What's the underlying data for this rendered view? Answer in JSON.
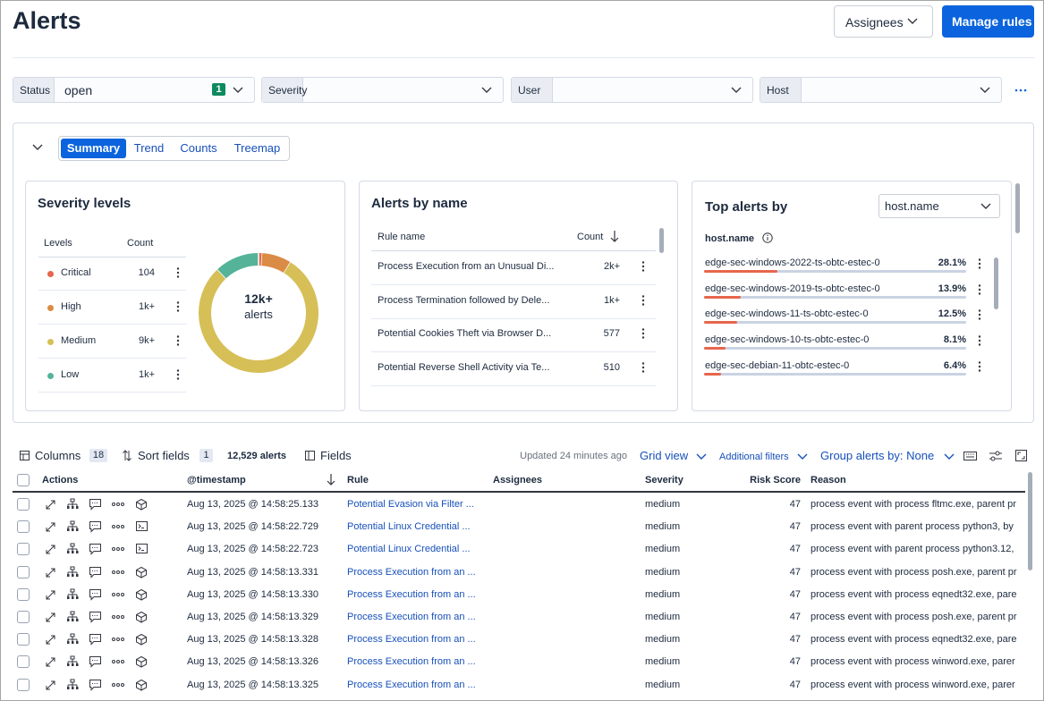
{
  "header": {
    "title": "Alerts",
    "assignees_button": "Assignees",
    "manage_rules_button": "Manage rules"
  },
  "filters": [
    {
      "label": "Status",
      "value": "open",
      "badge": "1"
    },
    {
      "label": "Severity"
    },
    {
      "label": "User"
    },
    {
      "label": "Host"
    }
  ],
  "summary_tabs": [
    "Summary",
    "Trend",
    "Counts",
    "Treemap"
  ],
  "severity_levels": {
    "title": "Severity levels",
    "columns": [
      "Levels",
      "Count"
    ],
    "rows": [
      {
        "level": "Critical",
        "count": "104",
        "color": "#e7664c",
        "share": 1
      },
      {
        "level": "High",
        "count": "1k+",
        "color": "#da8b45",
        "share": 8
      },
      {
        "level": "Medium",
        "count": "9k+",
        "color": "#d6bf57",
        "share": 79
      },
      {
        "level": "Low",
        "count": "1k+",
        "color": "#54b399",
        "share": 12
      }
    ],
    "donut_total": "12k+",
    "donut_label": "alerts"
  },
  "alerts_by_name": {
    "title": "Alerts by name",
    "columns": [
      "Rule name",
      "Count"
    ],
    "rows": [
      {
        "name": "Process Execution from an Unusual Di...",
        "count": "2k+"
      },
      {
        "name": "Process Termination followed by Dele...",
        "count": "1k+"
      },
      {
        "name": "Potential Cookies Theft via Browser D...",
        "count": 577
      },
      {
        "name": "Potential Reverse Shell Activity via Te...",
        "count": 510
      }
    ]
  },
  "top_alerts": {
    "title": "Top alerts by",
    "group_select": "host.name",
    "column": "host.name",
    "bar_color": "#e7664c",
    "rows": [
      {
        "name": "edge-sec-windows-2022-ts-obtc-estec-0",
        "value": 28.1,
        "value_label": "28.1%"
      },
      {
        "name": "edge-sec-windows-2019-ts-obtc-estec-0",
        "value": 13.9,
        "value_label": "13.9%"
      },
      {
        "name": "edge-sec-windows-11-ts-obtc-estec-0",
        "value": 12.5,
        "value_label": "12.5%"
      },
      {
        "name": "edge-sec-windows-10-ts-obtc-estec-0",
        "value": 8.1,
        "value_label": "8.1%"
      },
      {
        "name": "edge-sec-debian-11-obtc-estec-0",
        "value": 6.4,
        "value_label": "6.4%"
      }
    ]
  },
  "toolbar": {
    "columns": "Columns",
    "columns_count": "18",
    "sort_fields": "Sort fields",
    "sort_count": "1",
    "alert_count": "12,529 alerts",
    "fields": "Fields",
    "updated": "Updated 24 minutes ago",
    "grid_view": "Grid view",
    "additional_filters": "Additional filters",
    "group_by": "Group alerts by: None"
  },
  "table": {
    "columns": [
      "Actions",
      "@timestamp",
      "Rule",
      "Assignees",
      "Severity",
      "Risk Score",
      "Reason"
    ],
    "rows": [
      {
        "timestamp": "Aug 13, 2025 @ 14:58:25.133",
        "rule": "Potential Evasion via Filter ...",
        "severity": "medium",
        "risk_score": 47,
        "reason": "process event with process fltmc.exe, parent pr"
      },
      {
        "timestamp": "Aug 13, 2025 @ 14:58:22.729",
        "rule": "Potential Linux Credential ...",
        "severity": "medium",
        "risk_score": 47,
        "reason": "process event with parent process python3, by"
      },
      {
        "timestamp": "Aug 13, 2025 @ 14:58:22.723",
        "rule": "Potential Linux Credential ...",
        "severity": "medium",
        "risk_score": 47,
        "reason": "process event with parent process python3.12,"
      },
      {
        "timestamp": "Aug 13, 2025 @ 14:58:13.331",
        "rule": "Process Execution from an ...",
        "severity": "medium",
        "risk_score": 47,
        "reason": "process event with process posh.exe, parent pr"
      },
      {
        "timestamp": "Aug 13, 2025 @ 14:58:13.330",
        "rule": "Process Execution from an ...",
        "severity": "medium",
        "risk_score": 47,
        "reason": "process event with process eqnedt32.exe, pare"
      },
      {
        "timestamp": "Aug 13, 2025 @ 14:58:13.329",
        "rule": "Process Execution from an ...",
        "severity": "medium",
        "risk_score": 47,
        "reason": "process event with process posh.exe, parent pr"
      },
      {
        "timestamp": "Aug 13, 2025 @ 14:58:13.328",
        "rule": "Process Execution from an ...",
        "severity": "medium",
        "risk_score": 47,
        "reason": "process event with process eqnedt32.exe, pare"
      },
      {
        "timestamp": "Aug 13, 2025 @ 14:58:13.326",
        "rule": "Process Execution from an ...",
        "severity": "medium",
        "risk_score": 47,
        "reason": "process event with process winword.exe, parer"
      },
      {
        "timestamp": "Aug 13, 2025 @ 14:58:13.325",
        "rule": "Process Execution from an ...",
        "severity": "medium",
        "risk_score": 47,
        "reason": "process event with process winword.exe, parer"
      }
    ]
  }
}
